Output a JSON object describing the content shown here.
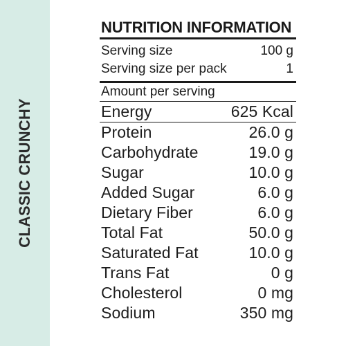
{
  "side_label": "CLASSIC CRUNCHY",
  "title": "NUTRITION INFORMATION",
  "serving": [
    {
      "label": "Serving size",
      "value": "100 g"
    },
    {
      "label": "Serving size per pack",
      "value": "1"
    }
  ],
  "amount_per_serving": "Amount per serving",
  "energy": {
    "label": "Energy",
    "value": "625 Kcal"
  },
  "nutrients": [
    {
      "label": "Protein",
      "value": "26.0 g"
    },
    {
      "label": "Carbohydrate",
      "value": "19.0 g"
    },
    {
      "label": "Sugar",
      "value": "10.0 g"
    },
    {
      "label": "Added Sugar",
      "value": "6.0 g"
    },
    {
      "label": "Dietary Fiber",
      "value": "6.0 g"
    },
    {
      "label": "Total Fat",
      "value": "50.0 g"
    },
    {
      "label": "Saturated Fat",
      "value": "10.0 g"
    },
    {
      "label": "Trans Fat",
      "value": "0 g"
    },
    {
      "label": "Cholesterol",
      "value": "0 mg"
    },
    {
      "label": "Sodium",
      "value": "350 mg"
    }
  ],
  "colors": {
    "side_band": "#d7ece6",
    "text": "#1d1d1d"
  }
}
